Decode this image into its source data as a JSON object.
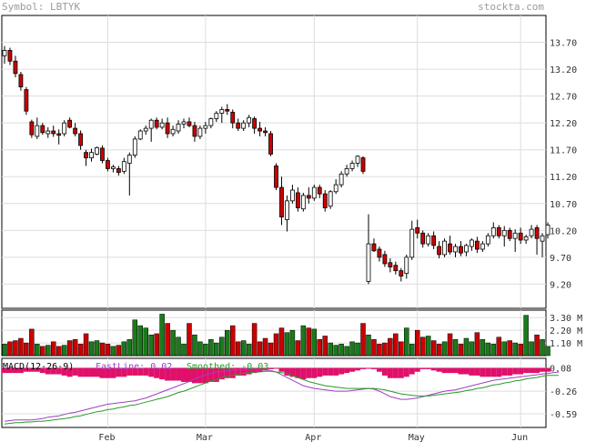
{
  "header": {
    "symbol_text": "Symbol: LBTYK",
    "site_text": "stockta.com"
  },
  "colors": {
    "up": "#ffffff",
    "down": "#cc0000",
    "vol_up": "#1a7a1a",
    "vol_down": "#cc0000",
    "grid": "#dddddd",
    "macd_fast": "#a040c0",
    "macd_smooth": "#2a9a2a",
    "macd_hist": "#e0106a"
  },
  "chart_data": [
    {
      "type": "candlestick",
      "title": "",
      "x_months": [
        "Feb",
        "Mar",
        "Apr",
        "May",
        "Jun"
      ],
      "month_start_index": [
        19,
        37,
        57,
        76,
        95
      ],
      "yticks": [
        13.7,
        13.2,
        12.7,
        12.2,
        11.7,
        11.2,
        10.7,
        10.2,
        9.7,
        9.2
      ],
      "ylim": [
        8.75,
        14.2
      ],
      "grid": true,
      "ohlc": [
        [
          13.45,
          13.63,
          13.3,
          13.55
        ],
        [
          13.55,
          13.6,
          13.28,
          13.35
        ],
        [
          13.35,
          13.45,
          13.05,
          13.12
        ],
        [
          13.1,
          13.15,
          12.8,
          12.87
        ],
        [
          12.82,
          12.87,
          12.35,
          12.42
        ],
        [
          12.22,
          12.26,
          11.92,
          11.98
        ],
        [
          11.95,
          12.3,
          11.9,
          12.15
        ],
        [
          12.15,
          12.2,
          11.98,
          12.02
        ],
        [
          12.0,
          12.12,
          11.92,
          12.05
        ],
        [
          12.05,
          12.15,
          11.94,
          12.0
        ],
        [
          12.0,
          12.08,
          11.8,
          11.97
        ],
        [
          12.0,
          12.25,
          11.95,
          12.2
        ],
        [
          12.25,
          12.3,
          12.1,
          12.12
        ],
        [
          12.1,
          12.2,
          11.95,
          12.0
        ],
        [
          12.0,
          12.06,
          11.7,
          11.78
        ],
        [
          11.65,
          11.7,
          11.4,
          11.55
        ],
        [
          11.55,
          11.72,
          11.48,
          11.65
        ],
        [
          11.62,
          11.76,
          11.6,
          11.74
        ],
        [
          11.73,
          11.78,
          11.45,
          11.5
        ],
        [
          11.5,
          11.55,
          11.3,
          11.35
        ],
        [
          11.35,
          11.42,
          11.28,
          11.38
        ],
        [
          11.35,
          11.4,
          11.22,
          11.28
        ],
        [
          11.3,
          11.55,
          11.25,
          11.48
        ],
        [
          11.45,
          11.65,
          10.85,
          11.6
        ],
        [
          11.6,
          11.95,
          11.55,
          11.9
        ],
        [
          11.9,
          12.08,
          11.88,
          12.05
        ],
        [
          12.05,
          12.15,
          11.98,
          12.1
        ],
        [
          12.1,
          12.28,
          11.85,
          12.25
        ],
        [
          12.25,
          12.3,
          12.08,
          12.12
        ],
        [
          12.12,
          12.28,
          12.08,
          12.2
        ],
        [
          12.2,
          12.3,
          11.92,
          12.0
        ],
        [
          12.0,
          12.15,
          11.95,
          12.08
        ],
        [
          12.05,
          12.25,
          12.0,
          12.18
        ],
        [
          12.18,
          12.28,
          12.1,
          12.22
        ],
        [
          12.22,
          12.3,
          12.12,
          12.15
        ],
        [
          12.15,
          12.22,
          11.85,
          11.95
        ],
        [
          11.95,
          12.15,
          11.9,
          12.1
        ],
        [
          12.1,
          12.22,
          12.0,
          12.15
        ],
        [
          12.15,
          12.3,
          12.1,
          12.28
        ],
        [
          12.28,
          12.42,
          12.22,
          12.38
        ],
        [
          12.38,
          12.5,
          12.2,
          12.45
        ],
        [
          12.45,
          12.55,
          12.35,
          12.42
        ],
        [
          12.4,
          12.45,
          12.1,
          12.2
        ],
        [
          12.2,
          12.28,
          12.05,
          12.1
        ],
        [
          12.1,
          12.25,
          12.05,
          12.2
        ],
        [
          12.2,
          12.35,
          12.12,
          12.3
        ],
        [
          12.28,
          12.32,
          12.0,
          12.1
        ],
        [
          12.1,
          12.22,
          11.95,
          12.05
        ],
        [
          12.05,
          12.12,
          11.95,
          12.02
        ],
        [
          12.0,
          12.05,
          11.58,
          11.62
        ],
        [
          11.4,
          11.45,
          10.95,
          11.0
        ],
        [
          11.0,
          11.2,
          10.3,
          10.45
        ],
        [
          10.4,
          10.85,
          10.18,
          10.75
        ],
        [
          10.75,
          11.05,
          10.7,
          10.95
        ],
        [
          10.9,
          11.0,
          10.55,
          10.62
        ],
        [
          10.6,
          10.9,
          10.55,
          10.85
        ],
        [
          10.85,
          11.0,
          10.7,
          10.8
        ],
        [
          10.8,
          11.05,
          10.75,
          11.0
        ],
        [
          11.0,
          11.05,
          10.8,
          10.88
        ],
        [
          10.88,
          10.95,
          10.55,
          10.62
        ],
        [
          10.65,
          10.95,
          10.6,
          10.92
        ],
        [
          10.92,
          11.15,
          10.88,
          11.05
        ],
        [
          11.05,
          11.3,
          11.0,
          11.25
        ],
        [
          11.25,
          11.42,
          11.2,
          11.35
        ],
        [
          11.35,
          11.5,
          11.3,
          11.45
        ],
        [
          11.45,
          11.6,
          11.38,
          11.58
        ],
        [
          11.55,
          11.58,
          11.25,
          11.3
        ],
        [
          9.25,
          10.5,
          9.2,
          9.95
        ],
        [
          9.95,
          10.05,
          9.8,
          9.82
        ],
        [
          9.85,
          9.9,
          9.62,
          9.7
        ],
        [
          9.75,
          9.82,
          9.52,
          9.58
        ],
        [
          9.6,
          9.68,
          9.42,
          9.52
        ],
        [
          9.55,
          9.62,
          9.38,
          9.45
        ],
        [
          9.45,
          9.5,
          9.25,
          9.35
        ],
        [
          9.4,
          9.75,
          9.3,
          9.7
        ],
        [
          9.7,
          10.38,
          9.65,
          10.22
        ],
        [
          10.25,
          10.4,
          10.05,
          10.15
        ],
        [
          10.15,
          10.2,
          9.88,
          9.95
        ],
        [
          9.95,
          10.15,
          9.9,
          10.1
        ],
        [
          10.1,
          10.18,
          9.85,
          9.92
        ],
        [
          9.9,
          10.0,
          9.68,
          9.75
        ],
        [
          9.75,
          10.05,
          9.7,
          10.0
        ],
        [
          9.95,
          10.1,
          9.75,
          9.8
        ],
        [
          9.8,
          9.95,
          9.7,
          9.9
        ],
        [
          9.9,
          10.0,
          9.72,
          9.78
        ],
        [
          9.8,
          9.95,
          9.72,
          9.92
        ],
        [
          9.9,
          10.05,
          9.82,
          10.02
        ],
        [
          10.0,
          10.08,
          9.78,
          9.85
        ],
        [
          9.85,
          10.0,
          9.8,
          9.95
        ],
        [
          9.95,
          10.15,
          9.9,
          10.1
        ],
        [
          10.1,
          10.35,
          10.05,
          10.25
        ],
        [
          10.25,
          10.3,
          10.05,
          10.1
        ],
        [
          10.1,
          10.28,
          9.9,
          10.2
        ],
        [
          10.2,
          10.25,
          10.0,
          10.05
        ],
        [
          10.05,
          10.22,
          9.8,
          10.15
        ],
        [
          10.15,
          10.25,
          9.95,
          10.02
        ],
        [
          10.02,
          10.12,
          9.95,
          10.08
        ],
        [
          10.1,
          10.3,
          10.05,
          10.22
        ],
        [
          10.25,
          10.3,
          9.75,
          10.05
        ],
        [
          10.0,
          10.15,
          9.7,
          10.1
        ],
        [
          10.12,
          10.35,
          10.05,
          10.3
        ]
      ]
    },
    {
      "type": "bar",
      "title": "",
      "yticks_label": [
        "3.30 M",
        "2.20 M",
        "1.10 M"
      ],
      "yticks": [
        3.3,
        2.2,
        1.1
      ],
      "ylim": [
        0,
        3.95
      ],
      "values": [
        1.0,
        1.2,
        1.3,
        1.5,
        1.1,
        2.3,
        1.0,
        0.8,
        0.9,
        1.2,
        0.8,
        0.9,
        1.3,
        1.4,
        1.0,
        1.9,
        1.2,
        1.3,
        1.1,
        1.0,
        0.8,
        0.9,
        1.2,
        1.4,
        3.1,
        2.6,
        2.4,
        1.8,
        1.9,
        3.6,
        2.8,
        2.2,
        1.6,
        1.0,
        2.8,
        1.8,
        1.2,
        1.0,
        1.4,
        1.1,
        1.6,
        2.2,
        2.6,
        1.2,
        1.3,
        1.0,
        2.8,
        1.2,
        1.5,
        1.1,
        1.9,
        2.4,
        2.0,
        2.2,
        1.3,
        2.6,
        2.4,
        2.3,
        1.4,
        1.7,
        1.1,
        0.9,
        1.0,
        0.8,
        1.2,
        1.1,
        2.8,
        1.8,
        1.4,
        1.0,
        1.1,
        1.5,
        1.9,
        1.2,
        2.4,
        1.0,
        2.2,
        1.6,
        1.7,
        1.3,
        1.0,
        1.2,
        1.9,
        1.4,
        1.0,
        1.5,
        1.2,
        2.0,
        1.4,
        1.1,
        1.0,
        1.6,
        1.2,
        1.3,
        1.1,
        1.0,
        3.5,
        1.2,
        1.8,
        1.4,
        0.8
      ],
      "up": [
        1,
        0,
        0,
        0,
        0,
        0,
        1,
        0,
        1,
        0,
        0,
        1,
        0,
        0,
        0,
        0,
        1,
        1,
        0,
        0,
        1,
        0,
        1,
        1,
        1,
        1,
        1,
        1,
        0,
        1,
        0,
        1,
        1,
        1,
        0,
        1,
        1,
        1,
        1,
        1,
        1,
        1,
        0,
        0,
        1,
        1,
        0,
        0,
        0,
        0,
        0,
        0,
        1,
        1,
        0,
        1,
        0,
        1,
        0,
        0,
        1,
        1,
        1,
        1,
        1,
        1,
        0,
        1,
        0,
        0,
        0,
        0,
        0,
        0,
        1,
        1,
        0,
        0,
        1,
        0,
        0,
        1,
        0,
        1,
        0,
        1,
        1,
        0,
        1,
        1,
        1,
        0,
        1,
        0,
        1,
        0,
        1,
        1,
        0,
        1,
        1
      ]
    },
    {
      "type": "line",
      "title": "",
      "label": "MACD(12-26-9)",
      "fast_label": "FastLine: 0.02",
      "smooth_label": "Smoothed: -0.03",
      "yticks": [
        0.08,
        -0.26,
        -0.59
      ],
      "ylim": [
        -0.79,
        0.22
      ],
      "series": [
        {
          "name": "FastLine",
          "values": [
            -0.7,
            -0.69,
            -0.68,
            -0.68,
            -0.68,
            -0.68,
            -0.67,
            -0.66,
            -0.64,
            -0.63,
            -0.62,
            -0.6,
            -0.58,
            -0.57,
            -0.55,
            -0.53,
            -0.51,
            -0.49,
            -0.47,
            -0.45,
            -0.44,
            -0.43,
            -0.42,
            -0.41,
            -0.4,
            -0.38,
            -0.36,
            -0.33,
            -0.3,
            -0.27,
            -0.24,
            -0.21,
            -0.18,
            -0.15,
            -0.12,
            -0.08,
            -0.05,
            -0.02,
            0.0,
            0.02,
            0.03,
            0.04,
            0.05,
            0.05,
            0.06,
            0.06,
            0.06,
            0.05,
            0.05,
            0.04,
            0.02,
            -0.02,
            -0.06,
            -0.1,
            -0.14,
            -0.18,
            -0.2,
            -0.22,
            -0.23,
            -0.24,
            -0.25,
            -0.26,
            -0.26,
            -0.26,
            -0.25,
            -0.24,
            -0.23,
            -0.22,
            -0.23,
            -0.26,
            -0.3,
            -0.34,
            -0.36,
            -0.38,
            -0.38,
            -0.37,
            -0.36,
            -0.34,
            -0.32,
            -0.3,
            -0.28,
            -0.26,
            -0.25,
            -0.24,
            -0.22,
            -0.2,
            -0.18,
            -0.16,
            -0.14,
            -0.12,
            -0.1,
            -0.09,
            -0.08,
            -0.07,
            -0.06,
            -0.05,
            -0.04,
            -0.03,
            -0.02,
            -0.01,
            0.0,
            0.01,
            0.02
          ]
        },
        {
          "name": "Smoothed",
          "values": [
            -0.74,
            -0.73,
            -0.72,
            -0.72,
            -0.71,
            -0.71,
            -0.7,
            -0.7,
            -0.69,
            -0.68,
            -0.67,
            -0.66,
            -0.65,
            -0.63,
            -0.62,
            -0.6,
            -0.58,
            -0.56,
            -0.55,
            -0.53,
            -0.52,
            -0.5,
            -0.49,
            -0.47,
            -0.46,
            -0.44,
            -0.42,
            -0.4,
            -0.38,
            -0.36,
            -0.34,
            -0.31,
            -0.28,
            -0.26,
            -0.23,
            -0.2,
            -0.17,
            -0.14,
            -0.11,
            -0.09,
            -0.06,
            -0.04,
            -0.03,
            -0.01,
            0.0,
            0.01,
            0.02,
            0.02,
            0.03,
            0.03,
            0.02,
            0.01,
            0.0,
            -0.03,
            -0.06,
            -0.09,
            -0.12,
            -0.14,
            -0.16,
            -0.18,
            -0.19,
            -0.2,
            -0.21,
            -0.22,
            -0.22,
            -0.22,
            -0.22,
            -0.22,
            -0.22,
            -0.23,
            -0.24,
            -0.26,
            -0.28,
            -0.3,
            -0.31,
            -0.32,
            -0.33,
            -0.33,
            -0.33,
            -0.32,
            -0.31,
            -0.3,
            -0.29,
            -0.28,
            -0.27,
            -0.25,
            -0.24,
            -0.22,
            -0.21,
            -0.19,
            -0.17,
            -0.16,
            -0.14,
            -0.13,
            -0.11,
            -0.1,
            -0.08,
            -0.07,
            -0.06,
            -0.04,
            -0.03,
            -0.03,
            -0.03
          ]
        }
      ]
    }
  ]
}
